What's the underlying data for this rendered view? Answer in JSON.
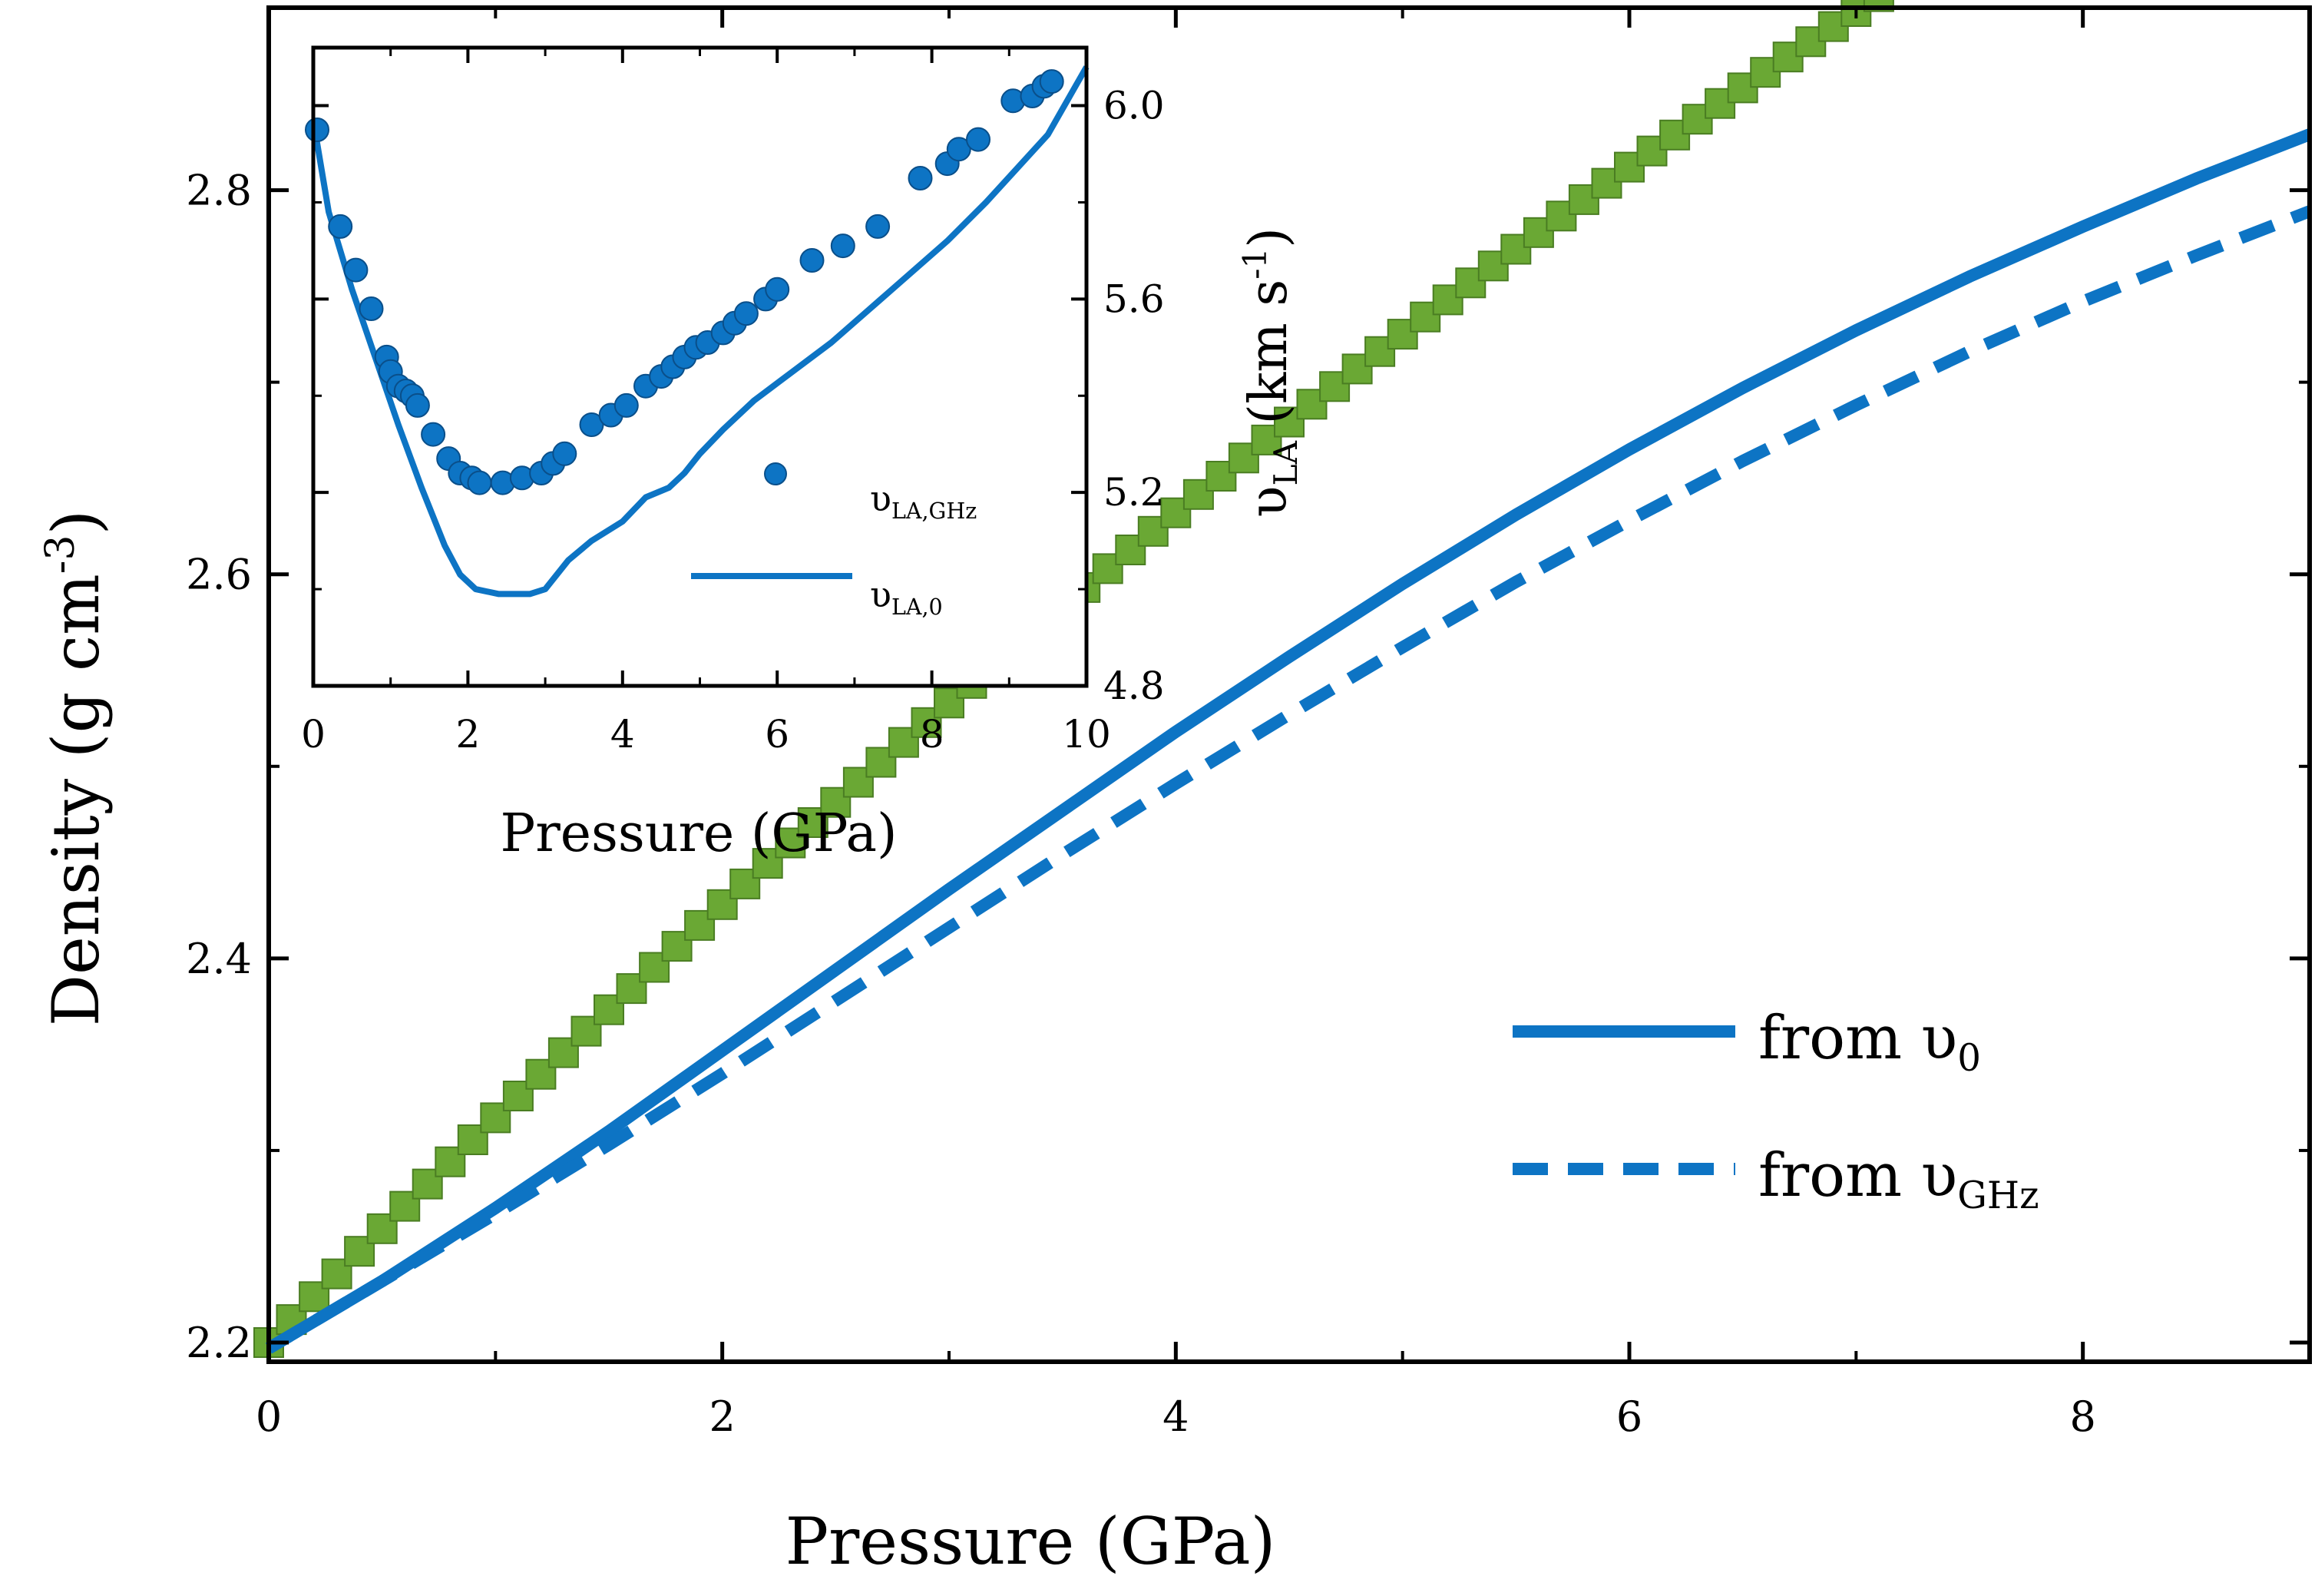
{
  "chart_data": [
    {
      "name": "main",
      "type": "line",
      "xlabel": "Pressure (GPa)",
      "ylabel": {
        "base": "Density (g cm",
        "sup": "-3",
        "end": ")"
      },
      "xlim": [
        0,
        9
      ],
      "ylim": [
        2.19,
        2.895
      ],
      "xticks": [
        0,
        2,
        4,
        6,
        8
      ],
      "yticks": [
        2.2,
        2.4,
        2.6,
        2.8
      ],
      "xtick_labels": [
        "0",
        "2",
        "4",
        "6",
        "8"
      ],
      "ytick_labels": [
        "2.2",
        "2.4",
        "2.6",
        "2.8"
      ],
      "series": [
        {
          "name": "data (squares)",
          "style": "square-marker",
          "color": "#6aa834",
          "edge_color": "#4a7d22",
          "x_start": 0.0,
          "x_end": 8.4,
          "x_step": 0.1,
          "poly": [
            2.2,
            0.12,
            -0.003
          ]
        },
        {
          "name": "from υ",
          "sub": "0",
          "style": "solid",
          "color": "#0d74c4",
          "x": [
            0,
            0.5,
            1,
            1.5,
            2,
            2.5,
            3,
            3.5,
            4,
            4.5,
            5,
            5.5,
            6,
            6.5,
            7,
            7.5,
            8,
            8.5,
            9
          ],
          "y": [
            2.197,
            2.232,
            2.27,
            2.31,
            2.352,
            2.394,
            2.436,
            2.477,
            2.518,
            2.557,
            2.595,
            2.631,
            2.665,
            2.697,
            2.727,
            2.755,
            2.781,
            2.806,
            2.829
          ]
        },
        {
          "name": "from υ",
          "sub": "GHz",
          "style": "dashed",
          "color": "#0d74c4",
          "x": [
            0,
            0.5,
            1,
            1.5,
            2,
            2.5,
            3,
            3.5,
            4,
            4.5,
            5,
            5.5,
            6,
            6.5,
            7,
            7.5,
            8,
            8.5,
            9
          ],
          "y": [
            2.197,
            2.232,
            2.267,
            2.303,
            2.34,
            2.378,
            2.416,
            2.454,
            2.491,
            2.527,
            2.562,
            2.596,
            2.628,
            2.659,
            2.688,
            2.716,
            2.742,
            2.766,
            2.789
          ]
        }
      ],
      "legend": {
        "position": "lower-right",
        "entries": [
          {
            "text": "from υ",
            "sub": "0"
          },
          {
            "text": "from υ",
            "sub": "GHz"
          }
        ]
      }
    },
    {
      "name": "inset",
      "type": "scatter",
      "xlabel": "Pressure (GPa)",
      "ylabel": {
        "base": "υ",
        "sub": "LA",
        "mid": " (km s",
        "sup": "-1",
        "end": ")"
      },
      "xlim": [
        0,
        10
      ],
      "ylim": [
        4.8,
        6.12
      ],
      "xticks": [
        0,
        2,
        4,
        6,
        8,
        10
      ],
      "yticks": [
        4.8,
        5.2,
        5.6,
        6.0
      ],
      "xtick_labels": [
        "0",
        "2",
        "4",
        "6",
        "8",
        "10"
      ],
      "ytick_labels": [
        "4.8",
        "5.2",
        "5.6",
        "6.0"
      ],
      "series": [
        {
          "name": "υ",
          "sub": "LA,GHz",
          "style": "circle-marker",
          "color": "#0d74c4",
          "x": [
            0.05,
            0.35,
            0.55,
            0.75,
            0.95,
            1.0,
            1.1,
            1.2,
            1.28,
            1.35,
            1.55,
            1.75,
            1.9,
            2.05,
            2.15,
            2.45,
            2.7,
            2.95,
            3.1,
            3.25,
            3.6,
            3.85,
            4.05,
            4.3,
            4.5,
            4.65,
            4.8,
            4.95,
            5.1,
            5.3,
            5.45,
            5.6,
            5.85,
            6.0,
            6.45,
            6.85,
            7.3,
            7.85,
            8.2,
            8.35,
            8.6,
            9.05,
            9.3,
            9.45,
            9.55
          ],
          "y": [
            5.95,
            5.75,
            5.66,
            5.58,
            5.48,
            5.45,
            5.42,
            5.41,
            5.4,
            5.38,
            5.32,
            5.27,
            5.24,
            5.23,
            5.22,
            5.22,
            5.23,
            5.24,
            5.26,
            5.28,
            5.34,
            5.36,
            5.38,
            5.42,
            5.44,
            5.46,
            5.48,
            5.5,
            5.51,
            5.53,
            5.55,
            5.57,
            5.6,
            5.62,
            5.68,
            5.71,
            5.75,
            5.85,
            5.88,
            5.91,
            5.93,
            6.01,
            6.02,
            6.04,
            6.05
          ]
        },
        {
          "name": "υ",
          "sub": "LA,0",
          "style": "solid",
          "color": "#0d74c4",
          "x": [
            0,
            0.2,
            0.5,
            0.8,
            1.1,
            1.4,
            1.7,
            1.9,
            2.1,
            2.4,
            2.8,
            3.0,
            3.3,
            3.6,
            4.0,
            4.3,
            4.6,
            4.8,
            5.0,
            5.3,
            5.7,
            6.2,
            6.7,
            7.2,
            7.7,
            8.2,
            8.7,
            9.1,
            9.5,
            10.0
          ],
          "y": [
            5.97,
            5.78,
            5.62,
            5.48,
            5.34,
            5.21,
            5.09,
            5.03,
            5.0,
            4.99,
            4.99,
            5.0,
            5.06,
            5.1,
            5.14,
            5.19,
            5.21,
            5.24,
            5.28,
            5.33,
            5.39,
            5.45,
            5.51,
            5.58,
            5.65,
            5.72,
            5.8,
            5.87,
            5.94,
            6.08
          ]
        }
      ],
      "legend": {
        "position": "lower-right",
        "entries": [
          {
            "text": "υ",
            "sub": "LA,GHz"
          },
          {
            "text": "υ",
            "sub": "LA,0"
          }
        ]
      }
    }
  ]
}
